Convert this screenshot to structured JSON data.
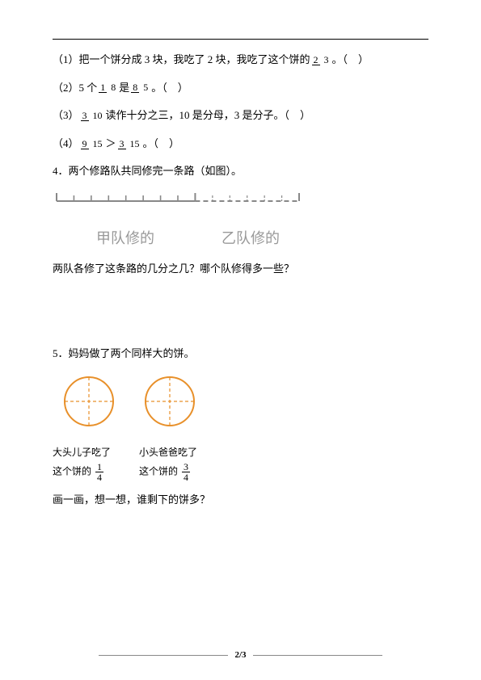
{
  "q1": {
    "pre": "（1）把一个饼分成 3 块，我吃了 2 块，我吃了这个饼的",
    "frac": {
      "num": "2",
      "den": "3"
    },
    "post": "。（　）"
  },
  "q2": {
    "pre": "（2）5 个",
    "frac1": {
      "num": "1",
      "den": "8"
    },
    "mid": "是",
    "frac2": {
      "num": "8",
      "den": "5"
    },
    "post": "。（　）"
  },
  "q3": {
    "pre": "（3）",
    "frac": {
      "num": "3",
      "den": "10"
    },
    "post": "读作十分之三，10 是分母，3 是分子。（　）"
  },
  "q4": {
    "pre": "（4）",
    "frac1": {
      "num": "9",
      "den": "15"
    },
    "op": "＞",
    "frac2": {
      "num": "3",
      "den": "15"
    },
    "post": "。（　）"
  },
  "q4title": "4．两个修路队共同修完一条路（如图）。",
  "diagram": {
    "total_ticks": 14,
    "split_at": 8,
    "label_a": "甲队修的",
    "label_b": "乙队修的",
    "line_color": "#888888"
  },
  "q4ask": "两队各修了这条路的几分之几？哪个队修得多一些？",
  "q5title": "5．妈妈做了两个同样大的饼。",
  "circles": {
    "stroke": "#e8902a",
    "dash": "#e8902a",
    "radius": 30
  },
  "cap": {
    "c1l1": "大头儿子吃了",
    "c1l2a": "这个饼的",
    "c1frac": {
      "num": "1",
      "den": "4"
    },
    "c2l1": "小头爸爸吃了",
    "c2l2a": "这个饼的",
    "c2frac": {
      "num": "3",
      "den": "4"
    }
  },
  "q5ask": "画一画，想一想，谁剩下的饼多？",
  "pagenum": "2/3"
}
